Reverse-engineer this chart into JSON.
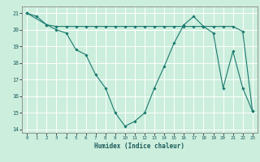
{
  "xlabel": "Humidex (Indice chaleur)",
  "bg_color": "#cceedd",
  "grid_color": "#ffffff",
  "line_color": "#1a7a6e",
  "line1_x": [
    0,
    1,
    2,
    3,
    4,
    5,
    6,
    7,
    8,
    9,
    10,
    11,
    12,
    13,
    14,
    15,
    16,
    17,
    18,
    19,
    20,
    21,
    22,
    23
  ],
  "line1_y": [
    21.0,
    20.8,
    20.3,
    20.0,
    19.8,
    18.8,
    18.5,
    17.3,
    16.5,
    15.0,
    14.2,
    14.5,
    15.0,
    16.5,
    17.8,
    19.2,
    20.3,
    20.8,
    20.2,
    19.8,
    16.5,
    18.7,
    16.5,
    15.1
  ],
  "line2_x": [
    0,
    2,
    3,
    4,
    5,
    6,
    7,
    8,
    9,
    10,
    11,
    12,
    13,
    14,
    15,
    16,
    17,
    18,
    19,
    20,
    21,
    22,
    23
  ],
  "line2_y": [
    21.0,
    20.3,
    20.2,
    20.2,
    20.2,
    20.2,
    20.2,
    20.2,
    20.2,
    20.2,
    20.2,
    20.2,
    20.2,
    20.2,
    20.2,
    20.2,
    20.2,
    20.2,
    20.2,
    20.2,
    20.2,
    19.9,
    15.1
  ],
  "xlim": [
    -0.5,
    23.5
  ],
  "ylim": [
    13.8,
    21.4
  ],
  "yticks": [
    14,
    15,
    16,
    17,
    18,
    19,
    20,
    21
  ],
  "xticks": [
    0,
    1,
    2,
    3,
    4,
    5,
    6,
    7,
    8,
    9,
    10,
    11,
    12,
    13,
    14,
    15,
    16,
    17,
    18,
    19,
    20,
    21,
    22,
    23
  ]
}
